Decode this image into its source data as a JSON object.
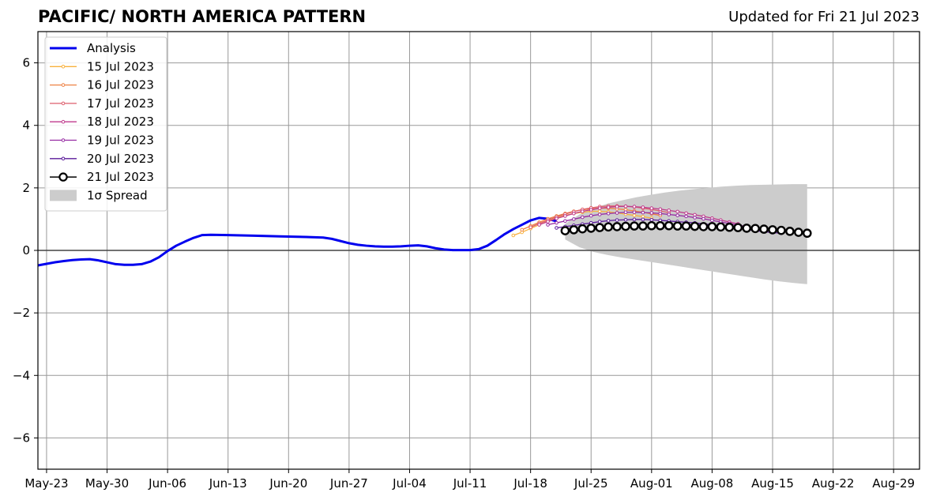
{
  "header": {
    "title": "PACIFIC/ NORTH AMERICA PATTERN",
    "updated": "Updated for Fri 21 Jul 2023"
  },
  "chart_data": {
    "type": "line",
    "title": "PACIFIC/ NORTH AMERICA PATTERN",
    "xlabel": "",
    "ylabel": "",
    "xlim": [
      "2023-05-22",
      "2023-09-01"
    ],
    "ylim": [
      -7,
      7
    ],
    "grid": true,
    "legend_position": "top-left",
    "x_ticks": [
      {
        "date": "2023-05-23",
        "label": "May-23"
      },
      {
        "date": "2023-05-30",
        "label": "May-30"
      },
      {
        "date": "2023-06-06",
        "label": "Jun-06"
      },
      {
        "date": "2023-06-13",
        "label": "Jun-13"
      },
      {
        "date": "2023-06-20",
        "label": "Jun-20"
      },
      {
        "date": "2023-06-27",
        "label": "Jun-27"
      },
      {
        "date": "2023-07-04",
        "label": "Jul-04"
      },
      {
        "date": "2023-07-11",
        "label": "Jul-11"
      },
      {
        "date": "2023-07-18",
        "label": "Jul-18"
      },
      {
        "date": "2023-07-25",
        "label": "Jul-25"
      },
      {
        "date": "2023-08-01",
        "label": "Aug-01"
      },
      {
        "date": "2023-08-08",
        "label": "Aug-08"
      },
      {
        "date": "2023-08-15",
        "label": "Aug-15"
      },
      {
        "date": "2023-08-22",
        "label": "Aug-22"
      },
      {
        "date": "2023-08-29",
        "label": "Aug-29"
      }
    ],
    "y_ticks": [
      {
        "value": 6,
        "label": "6"
      },
      {
        "value": 4,
        "label": "4"
      },
      {
        "value": 2,
        "label": "2"
      },
      {
        "value": 0,
        "label": "0"
      },
      {
        "value": -2,
        "label": "−2"
      },
      {
        "value": -4,
        "label": "−4"
      },
      {
        "value": -6,
        "label": "−6"
      }
    ],
    "legend": [
      {
        "label": "Analysis",
        "color": "#0000ee",
        "kind": "thick"
      },
      {
        "label": "15 Jul 2023",
        "color": "#f8b13d",
        "kind": "dot"
      },
      {
        "label": "16 Jul 2023",
        "color": "#ee8244",
        "kind": "dot"
      },
      {
        "label": "17 Jul 2023",
        "color": "#dd5e6c",
        "kind": "dot"
      },
      {
        "label": "18 Jul 2023",
        "color": "#bf3a8c",
        "kind": "dot"
      },
      {
        "label": "19 Jul 2023",
        "color": "#962ba2",
        "kind": "dot"
      },
      {
        "label": "20 Jul 2023",
        "color": "#5a1a9a",
        "kind": "dot"
      },
      {
        "label": "21 Jul 2023",
        "color": "#000000",
        "kind": "circle"
      },
      {
        "label": "1σ Spread",
        "color": "#cccccc",
        "kind": "patch"
      }
    ],
    "analysis": {
      "name": "Analysis",
      "color": "#0000ee",
      "points": [
        [
          "2023-05-22",
          -0.48
        ],
        [
          "2023-05-23",
          -0.43
        ],
        [
          "2023-05-24",
          -0.38
        ],
        [
          "2023-05-25",
          -0.34
        ],
        [
          "2023-05-26",
          -0.31
        ],
        [
          "2023-05-27",
          -0.29
        ],
        [
          "2023-05-28",
          -0.28
        ],
        [
          "2023-05-29",
          -0.32
        ],
        [
          "2023-05-30",
          -0.38
        ],
        [
          "2023-05-31",
          -0.44
        ],
        [
          "2023-06-01",
          -0.46
        ],
        [
          "2023-06-02",
          -0.46
        ],
        [
          "2023-06-03",
          -0.44
        ],
        [
          "2023-06-04",
          -0.36
        ],
        [
          "2023-06-05",
          -0.22
        ],
        [
          "2023-06-06",
          -0.02
        ],
        [
          "2023-06-07",
          0.15
        ],
        [
          "2023-06-08",
          0.28
        ],
        [
          "2023-06-09",
          0.4
        ],
        [
          "2023-06-10",
          0.49
        ],
        [
          "2023-06-11",
          0.5
        ],
        [
          "2023-06-13",
          0.49
        ],
        [
          "2023-06-16",
          0.47
        ],
        [
          "2023-06-19",
          0.45
        ],
        [
          "2023-06-22",
          0.43
        ],
        [
          "2023-06-24",
          0.41
        ],
        [
          "2023-06-25",
          0.37
        ],
        [
          "2023-06-26",
          0.3
        ],
        [
          "2023-06-27",
          0.23
        ],
        [
          "2023-06-28",
          0.18
        ],
        [
          "2023-06-29",
          0.15
        ],
        [
          "2023-06-30",
          0.13
        ],
        [
          "2023-07-01",
          0.12
        ],
        [
          "2023-07-02",
          0.12
        ],
        [
          "2023-07-03",
          0.13
        ],
        [
          "2023-07-04",
          0.15
        ],
        [
          "2023-07-05",
          0.16
        ],
        [
          "2023-07-06",
          0.13
        ],
        [
          "2023-07-07",
          0.07
        ],
        [
          "2023-07-08",
          0.03
        ],
        [
          "2023-07-09",
          0.01
        ],
        [
          "2023-07-10",
          0.01
        ],
        [
          "2023-07-11",
          0.01
        ],
        [
          "2023-07-12",
          0.04
        ],
        [
          "2023-07-13",
          0.15
        ],
        [
          "2023-07-14",
          0.33
        ],
        [
          "2023-07-15",
          0.52
        ],
        [
          "2023-07-16",
          0.68
        ],
        [
          "2023-07-17",
          0.82
        ],
        [
          "2023-07-18",
          0.96
        ],
        [
          "2023-07-19",
          1.04
        ],
        [
          "2023-07-20",
          1.01
        ],
        [
          "2023-07-21",
          0.93
        ]
      ]
    },
    "spread": {
      "name": "1σ Spread",
      "color": "#cccccc",
      "start": "2023-07-22",
      "end": "2023-08-19",
      "upper": [
        0.85,
        1.15,
        1.35,
        1.5,
        1.6,
        1.7,
        1.78,
        1.85,
        1.91,
        1.96,
        2.0,
        2.04,
        2.07,
        2.09,
        2.1,
        2.11,
        2.12,
        2.12
      ],
      "lower": [
        0.35,
        0.1,
        -0.05,
        -0.15,
        -0.23,
        -0.3,
        -0.37,
        -0.44,
        -0.51,
        -0.58,
        -0.65,
        -0.72,
        -0.79,
        -0.86,
        -0.93,
        -0.99,
        -1.04,
        -1.08
      ]
    },
    "series": [
      {
        "name": "15 Jul 2023",
        "color": "#f8b13d",
        "start": "2023-07-16",
        "values": [
          0.48,
          0.58,
          0.7,
          0.82,
          0.94,
          1.04,
          1.12,
          1.18,
          1.22,
          1.25,
          1.25,
          1.23,
          1.2,
          1.16,
          1.12,
          1.08,
          1.03
        ]
      },
      {
        "name": "16 Jul 2023",
        "color": "#ee8244",
        "start": "2023-07-17",
        "values": [
          0.66,
          0.78,
          0.9,
          1.01,
          1.1,
          1.18,
          1.25,
          1.3,
          1.33,
          1.35,
          1.35,
          1.33,
          1.3,
          1.26,
          1.22,
          1.17,
          1.12
        ]
      },
      {
        "name": "17 Jul 2023",
        "color": "#dd5e6c",
        "start": "2023-07-18",
        "values": [
          0.74,
          0.86,
          0.97,
          1.07,
          1.16,
          1.24,
          1.31,
          1.36,
          1.4,
          1.42,
          1.42,
          1.41,
          1.39,
          1.35,
          1.31,
          1.26,
          1.21
        ]
      },
      {
        "name": "18 Jul 2023",
        "color": "#bf3a8c",
        "start": "2023-07-19",
        "values": [
          0.82,
          0.92,
          1.02,
          1.1,
          1.18,
          1.25,
          1.3,
          1.35,
          1.38,
          1.4,
          1.41,
          1.4,
          1.38,
          1.35,
          1.32,
          1.28,
          1.24,
          1.19,
          1.14,
          1.09,
          1.03,
          0.97,
          0.91,
          0.85
        ]
      },
      {
        "name": "19 Jul 2023",
        "color": "#962ba2",
        "start": "2023-07-20",
        "values": [
          0.82,
          0.88,
          0.94,
          1.0,
          1.06,
          1.11,
          1.15,
          1.18,
          1.2,
          1.22,
          1.22,
          1.21,
          1.2,
          1.18,
          1.15,
          1.12,
          1.09,
          1.05,
          1.01,
          0.96,
          0.91,
          0.86,
          0.81,
          0.76
        ]
      },
      {
        "name": "20 Jul 2023",
        "color": "#5a1a9a",
        "start": "2023-07-21",
        "values": [
          0.72,
          0.76,
          0.8,
          0.84,
          0.88,
          0.92,
          0.95,
          0.97,
          0.98,
          0.99,
          0.99,
          0.98,
          0.96,
          0.94,
          0.92,
          0.9,
          0.88,
          0.85,
          0.82,
          0.79,
          0.75,
          0.71,
          0.67,
          0.63,
          0.6,
          0.57,
          0.55
        ]
      },
      {
        "name": "21 Jul 2023",
        "color": "#000000",
        "start": "2023-07-22",
        "values": [
          0.63,
          0.66,
          0.69,
          0.71,
          0.73,
          0.75,
          0.76,
          0.77,
          0.78,
          0.78,
          0.79,
          0.79,
          0.79,
          0.78,
          0.78,
          0.77,
          0.76,
          0.76,
          0.75,
          0.74,
          0.73,
          0.71,
          0.7,
          0.68,
          0.66,
          0.64,
          0.61,
          0.58,
          0.55
        ]
      }
    ]
  }
}
